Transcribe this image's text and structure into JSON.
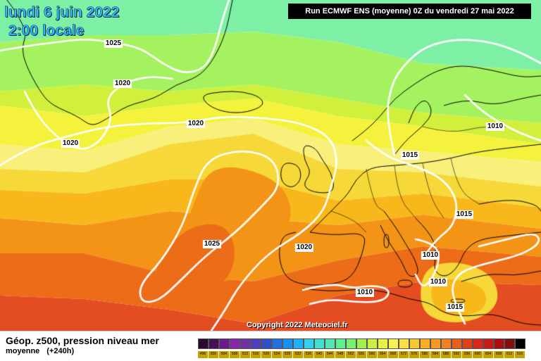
{
  "header": {
    "date_title": "lundi 6 juin 2022",
    "time_title": "2:00 locale",
    "run_info": "Run ECMWF ENS (moyenne) 0Z du vendredi 27 mai 2022"
  },
  "map": {
    "isobar_labels": [
      "1025",
      "1020",
      "1020",
      "1020",
      "1025",
      "1020",
      "1010",
      "1015",
      "1015",
      "1010",
      "1010",
      "1015",
      "1010"
    ]
  },
  "copyright": "Copyright 2022 Meteociel.fr",
  "footer": {
    "title": "Géop. z500, pression niveau mer",
    "subtitle_a": "moyenne",
    "subtitle_b": "(+240h)"
  },
  "legend": {
    "values": [
      "496",
      "500",
      "504",
      "508",
      "512",
      "516",
      "520",
      "524",
      "528",
      "532",
      "536",
      "540",
      "544",
      "548",
      "552",
      "556",
      "560",
      "564",
      "568",
      "572",
      "576",
      "580",
      "584",
      "588",
      "592",
      "596",
      "600",
      "604",
      "608",
      "612",
      "616"
    ],
    "colors": [
      "#2a0a30",
      "#48105a",
      "#6a1a8a",
      "#8a24a8",
      "#7030a0",
      "#4e40b8",
      "#3050c8",
      "#2070e0",
      "#1890f0",
      "#20b0f8",
      "#30d0f0",
      "#40e0d0",
      "#50e8b0",
      "#60f090",
      "#78f070",
      "#a0f050",
      "#c8f040",
      "#e8f040",
      "#f8f050",
      "#f8e040",
      "#f8c830",
      "#f8b020",
      "#f89820",
      "#f08020",
      "#e86018",
      "#e04018",
      "#d82818",
      "#c81818",
      "#a81010",
      "#801010",
      "#000000"
    ]
  },
  "colors": {
    "date_text": "#2ec0ff",
    "isobar": "#ffffff",
    "coastline": "#000000"
  }
}
